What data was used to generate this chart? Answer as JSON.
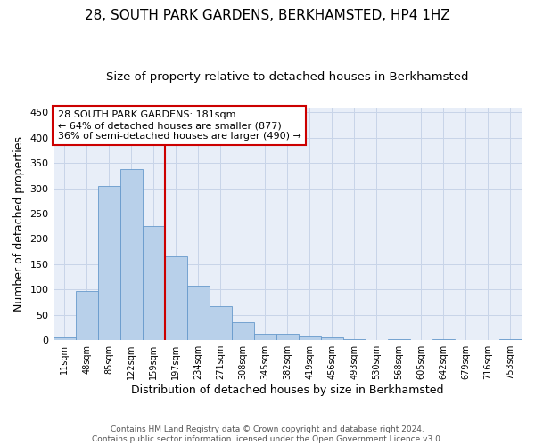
{
  "title": "28, SOUTH PARK GARDENS, BERKHAMSTED, HP4 1HZ",
  "subtitle": "Size of property relative to detached houses in Berkhamsted",
  "xlabel": "Distribution of detached houses by size in Berkhamsted",
  "ylabel": "Number of detached properties",
  "footer_line1": "Contains HM Land Registry data © Crown copyright and database right 2024.",
  "footer_line2": "Contains public sector information licensed under the Open Government Licence v3.0.",
  "bar_labels": [
    "11sqm",
    "48sqm",
    "85sqm",
    "122sqm",
    "159sqm",
    "197sqm",
    "234sqm",
    "271sqm",
    "308sqm",
    "345sqm",
    "382sqm",
    "419sqm",
    "456sqm",
    "493sqm",
    "530sqm",
    "568sqm",
    "605sqm",
    "642sqm",
    "679sqm",
    "716sqm",
    "753sqm"
  ],
  "bar_values": [
    5,
    97,
    305,
    338,
    225,
    165,
    108,
    68,
    35,
    13,
    13,
    8,
    6,
    2,
    0,
    3,
    0,
    2,
    0,
    0,
    3
  ],
  "bar_color": "#b8d0ea",
  "bar_edge_color": "#6699cc",
  "vline_x": 4.5,
  "vline_color": "#cc0000",
  "annotation_text": "28 SOUTH PARK GARDENS: 181sqm\n← 64% of detached houses are smaller (877)\n36% of semi-detached houses are larger (490) →",
  "annotation_box_color": "#ffffff",
  "annotation_box_edge_color": "#cc0000",
  "ylim": [
    0,
    460
  ],
  "yticks": [
    0,
    50,
    100,
    150,
    200,
    250,
    300,
    350,
    400,
    450
  ],
  "grid_color": "#c8d4e8",
  "background_color": "#e8eef8",
  "title_fontsize": 11,
  "subtitle_fontsize": 9.5,
  "xlabel_fontsize": 9,
  "ylabel_fontsize": 9
}
